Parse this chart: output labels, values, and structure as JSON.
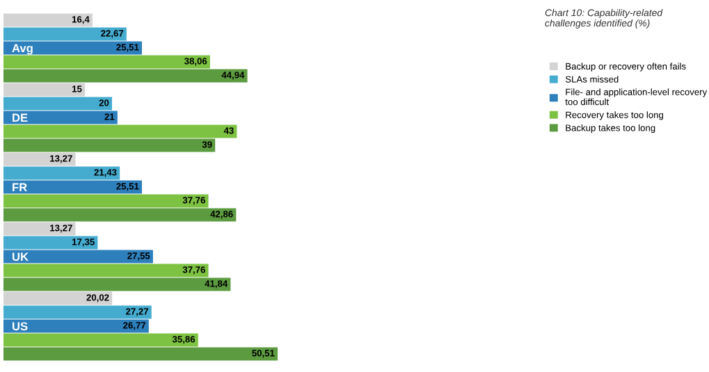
{
  "chart_data": {
    "type": "bar",
    "orientation": "horizontal",
    "title": "Chart 10: Capability-related\nchallenges identified (%)",
    "categories": [
      "Avg",
      "DE",
      "FR",
      "UK",
      "US"
    ],
    "series": [
      {
        "name": "Backup or recovery often fails",
        "color": "#d3d3d3",
        "values": [
          16.4,
          15,
          13.27,
          13.27,
          20.02
        ],
        "value_labels": [
          "16,4",
          "15",
          "13,27",
          "13,27",
          "20,02"
        ]
      },
      {
        "name": "SLAs missed",
        "color": "#45acd0",
        "values": [
          22.67,
          20,
          21.43,
          17.35,
          27.27
        ],
        "value_labels": [
          "22,67",
          "20",
          "21,43",
          "17,35",
          "27,27"
        ]
      },
      {
        "name": "File- and application-level recovery\ntoo difficult",
        "color": "#2e80bd",
        "values": [
          25.51,
          21,
          25.51,
          27.55,
          26.77
        ],
        "value_labels": [
          "25,51",
          "21",
          "25,51",
          "27,55",
          "26,77"
        ]
      },
      {
        "name": "Recovery takes too long",
        "color": "#7dc242",
        "values": [
          38.06,
          43,
          37.76,
          37.76,
          35.86
        ],
        "value_labels": [
          "38,06",
          "43",
          "37,76",
          "37,76",
          "35,86"
        ]
      },
      {
        "name": "Backup takes too long",
        "color": "#5c9b40",
        "values": [
          44.94,
          39,
          42.86,
          41.84,
          50.51
        ],
        "value_labels": [
          "44,94",
          "39",
          "42,86",
          "41,84",
          "50,51"
        ]
      }
    ],
    "legend": "top right",
    "tick_labels": "y"
  }
}
